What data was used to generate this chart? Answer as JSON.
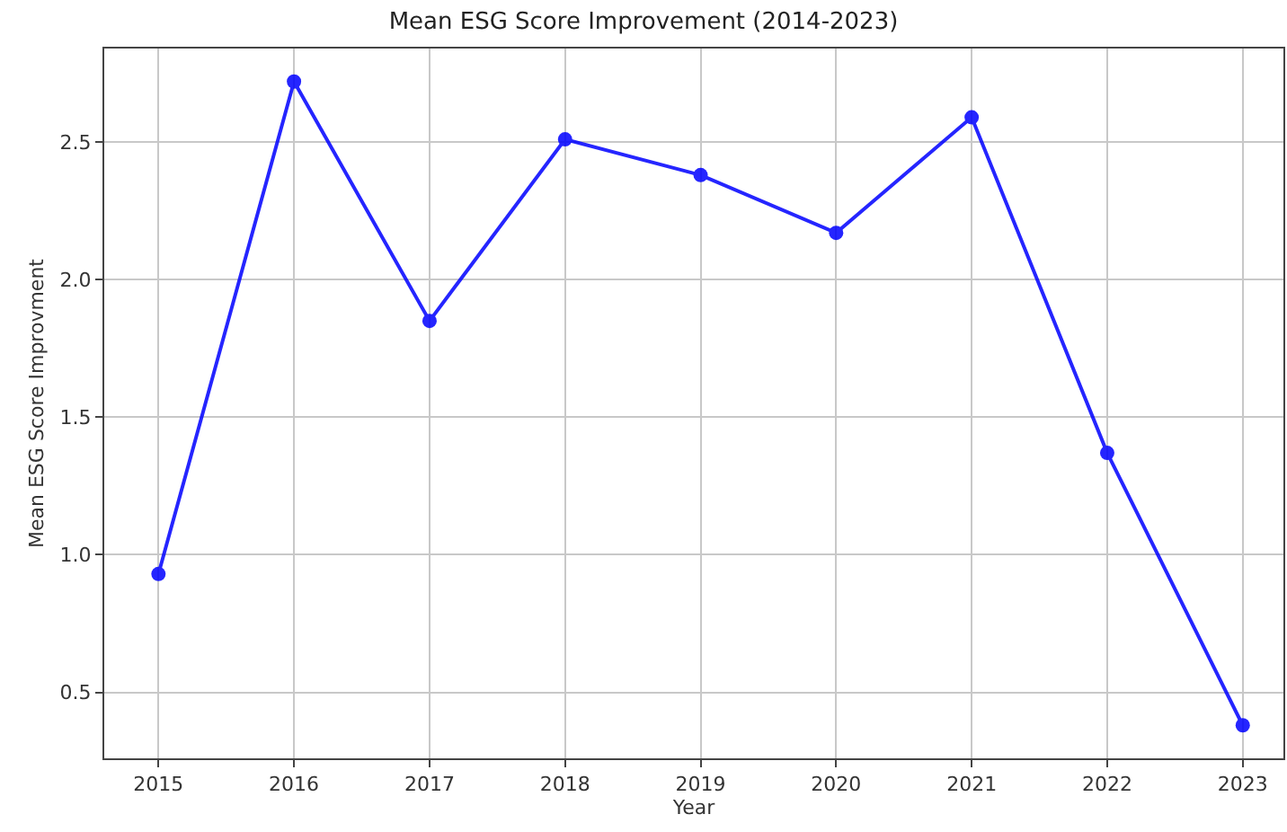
{
  "chart_data": {
    "type": "line",
    "title": "Mean ESG Score Improvement (2014-2023)",
    "xlabel": "Year",
    "ylabel": "Mean ESG Score Improvment",
    "x": [
      2015,
      2016,
      2017,
      2018,
      2019,
      2020,
      2021,
      2022,
      2023
    ],
    "series": [
      {
        "color": "#0000ff",
        "values": [
          0.93,
          2.72,
          1.85,
          2.51,
          2.38,
          2.17,
          2.59,
          1.37,
          0.38
        ]
      }
    ],
    "xlim": [
      2014.6,
      2023.3
    ],
    "xticks": [
      2015,
      2016,
      2017,
      2018,
      2019,
      2020,
      2021,
      2022,
      2023
    ],
    "ylim": [
      0.26,
      2.84
    ],
    "yticks": [
      {
        "value": 0.5,
        "label": "0.5"
      },
      {
        "value": 1,
        "label": "1.0"
      },
      {
        "value": 1.5,
        "label": "1.5"
      },
      {
        "value": 2,
        "label": "2.0"
      },
      {
        "value": 2.5,
        "label": "2.5"
      }
    ],
    "grid": true,
    "marker": "circle",
    "line_style": "solid"
  }
}
